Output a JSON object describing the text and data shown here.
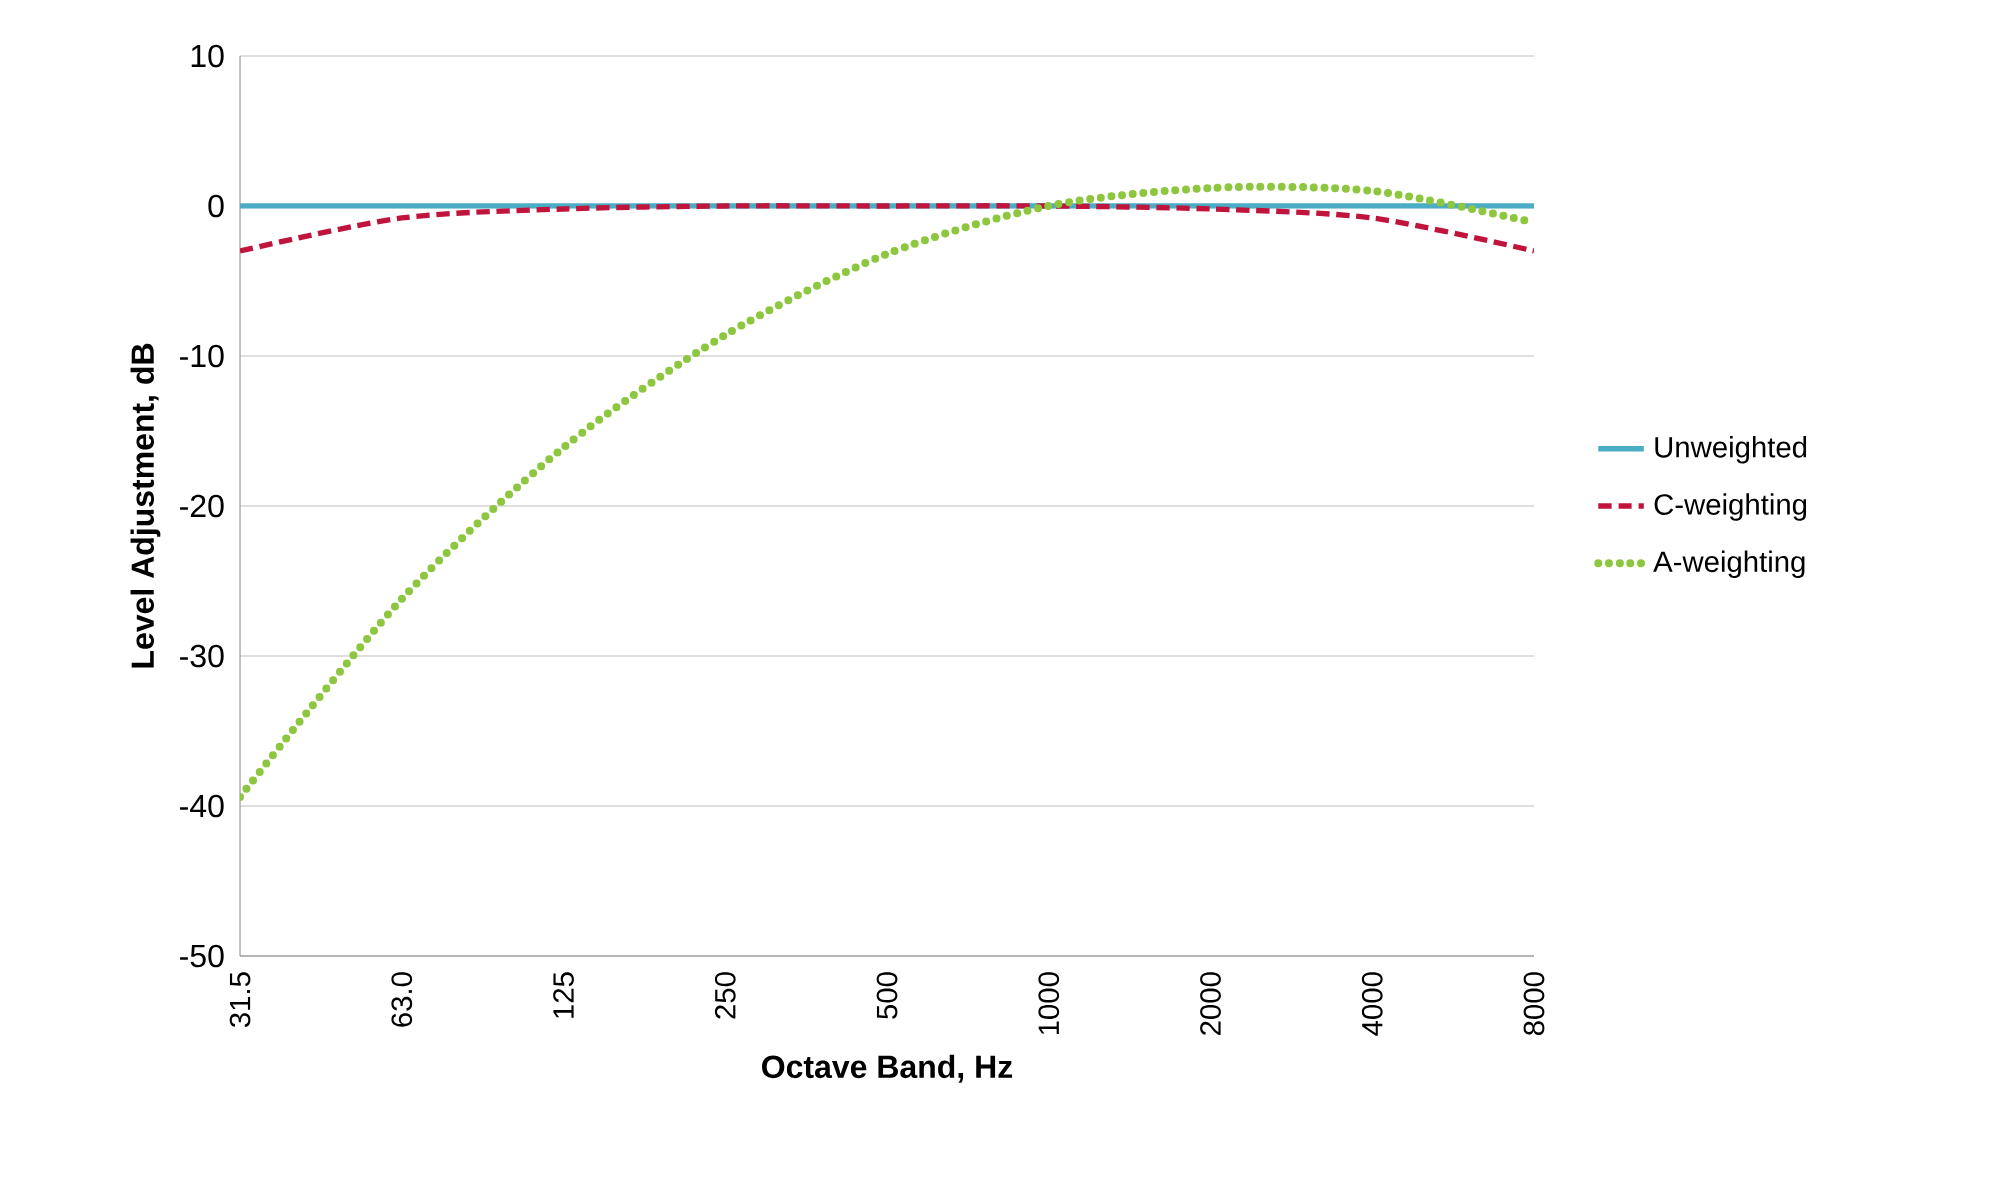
{
  "chart_data": {
    "type": "line",
    "xlabel": "Octave Band, Hz",
    "ylabel": "Level Adjustment, dB",
    "categories": [
      "31.5",
      "63.0",
      "125",
      "250",
      "500",
      "1000",
      "2000",
      "4000",
      "8000"
    ],
    "series": [
      {
        "name": "Unweighted",
        "color": "#4bacc6",
        "line_style": "solid",
        "values": [
          0,
          0,
          0,
          0,
          0,
          0,
          0,
          0,
          0
        ]
      },
      {
        "name": "C-weighting",
        "color": "#c0143c",
        "line_style": "dashed",
        "values": [
          -3.0,
          -0.8,
          -0.2,
          0,
          0,
          0,
          -0.2,
          -0.8,
          -3.0
        ]
      },
      {
        "name": "A-weighting",
        "color": "#8dc63f",
        "line_style": "dotted",
        "values": [
          -39.4,
          -26.2,
          -16.1,
          -8.6,
          -3.2,
          0,
          1.2,
          1.0,
          -1.1
        ]
      }
    ],
    "ylim": [
      -50,
      10
    ],
    "yticks": [
      -50,
      -40,
      -30,
      -20,
      -10,
      0,
      10
    ],
    "grid": "y",
    "legend": "right",
    "marker": "none"
  }
}
